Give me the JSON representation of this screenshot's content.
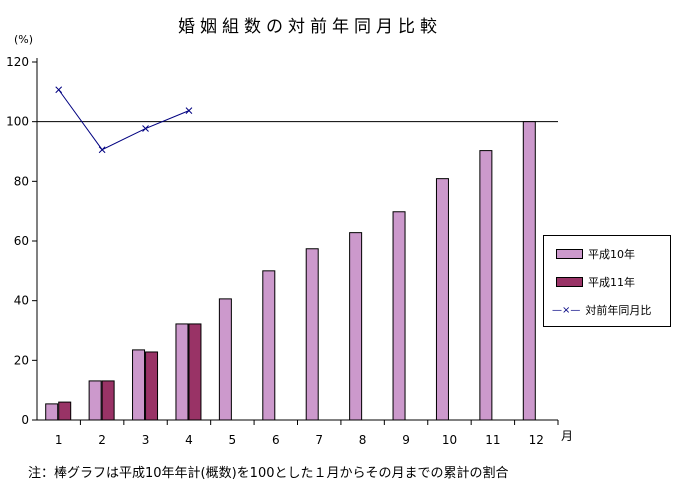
{
  "chart_data": {
    "type": "bar",
    "title": "婚姻組数の対前年同月比較",
    "ylabel": "(%)",
    "xlabel": "月",
    "note": "注：棒グラフは平成10年年計(概数)を100とした１月からその月までの累計の割合",
    "categories": [
      "1",
      "2",
      "3",
      "4",
      "5",
      "6",
      "7",
      "8",
      "9",
      "10",
      "11",
      "12"
    ],
    "ylim": [
      0,
      120
    ],
    "yticks": [
      "0",
      "20",
      "40",
      "60",
      "80",
      "100",
      "120"
    ],
    "reference_line": 100,
    "legend_position": "right",
    "series": [
      {
        "name": "平成10年",
        "type": "bar",
        "color": "#CC99CC",
        "values": [
          5.4,
          13.1,
          23.5,
          32.2,
          40.6,
          50.0,
          57.4,
          62.8,
          69.8,
          80.9,
          90.3,
          100
        ]
      },
      {
        "name": "平成11年",
        "type": "bar",
        "color": "#993366",
        "values": [
          6.0,
          13.1,
          22.8,
          32.2,
          null,
          null,
          null,
          null,
          null,
          null,
          null,
          null
        ]
      },
      {
        "name": "対前年同月比",
        "type": "line",
        "color": "#000080",
        "marker": "x",
        "values": [
          110.7,
          90.6,
          97.7,
          103.7,
          null,
          null,
          null,
          null,
          null,
          null,
          null,
          null
        ]
      }
    ]
  }
}
